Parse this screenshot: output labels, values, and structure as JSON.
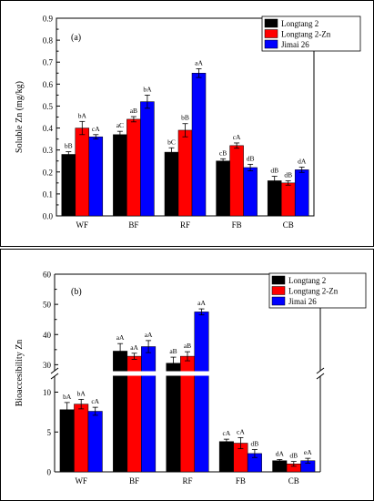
{
  "chart_data": [
    {
      "type": "bar",
      "panel_label": "(a)",
      "ylabel": "Soluble Zn (mg/kg)",
      "ylim": [
        0,
        0.9
      ],
      "yticks": [
        "0.0",
        "0.1",
        "0.2",
        "0.3",
        "0.4",
        "0.5",
        "0.6",
        "0.7",
        "0.8",
        "0.9"
      ],
      "categories": [
        "WF",
        "BF",
        "RF",
        "FB",
        "CB"
      ],
      "legend_position": "top-right",
      "series": [
        {
          "name": "Longtang 2",
          "color": "#000000",
          "values": [
            0.28,
            0.37,
            0.29,
            0.25,
            0.16
          ],
          "errors": [
            0.012,
            0.015,
            0.02,
            0.01,
            0.02
          ],
          "labels": [
            "bB",
            "aC",
            "bC",
            "cB",
            "dB"
          ]
        },
        {
          "name": "Longtang 2-Zn",
          "color": "#ff0000",
          "values": [
            0.4,
            0.44,
            0.39,
            0.32,
            0.15
          ],
          "errors": [
            0.03,
            0.012,
            0.03,
            0.012,
            0.01
          ],
          "labels": [
            "bA",
            "aB",
            "bB",
            "cA",
            "dB"
          ]
        },
        {
          "name": "Jimai 26",
          "color": "#0000ff",
          "values": [
            0.36,
            0.52,
            0.65,
            0.22,
            0.21
          ],
          "errors": [
            0.01,
            0.03,
            0.02,
            0.015,
            0.012
          ],
          "labels": [
            "cA",
            "bA",
            "aA",
            "dB",
            "dA"
          ]
        }
      ]
    },
    {
      "type": "bar",
      "panel_label": "(b)",
      "ylabel": "Bioaccesibility Zn",
      "axis_break": [
        12,
        28
      ],
      "ylim_lower": [
        0,
        12
      ],
      "ylim_upper": [
        28,
        60
      ],
      "yticks_lower": [
        "0",
        "5",
        "10"
      ],
      "yticks_upper": [
        "30",
        "40",
        "50",
        "60"
      ],
      "categories": [
        "WF",
        "BF",
        "RF",
        "FB",
        "CB"
      ],
      "legend_position": "top-right",
      "series": [
        {
          "name": "Longtang 2",
          "color": "#000000",
          "values": [
            7.8,
            34.5,
            30.5,
            3.8,
            1.4
          ],
          "errors": [
            0.9,
            2.5,
            2.0,
            0.3,
            0.15
          ],
          "labels": [
            "bA",
            "aA",
            "aB",
            "cA",
            "dA"
          ]
        },
        {
          "name": "Longtang 2-Zn",
          "color": "#ff0000",
          "values": [
            8.5,
            32.8,
            32.8,
            3.6,
            1.0
          ],
          "errors": [
            0.6,
            1.0,
            1.5,
            0.7,
            0.3
          ],
          "labels": [
            "bA",
            "aA",
            "aB",
            "cA",
            "dB"
          ]
        },
        {
          "name": "Jimai 26",
          "color": "#0000ff",
          "values": [
            7.6,
            36.0,
            47.5,
            2.3,
            1.4
          ],
          "errors": [
            0.5,
            2.0,
            1.0,
            0.5,
            0.3
          ],
          "labels": [
            "cA",
            "aA",
            "aA",
            "dB",
            "eA"
          ]
        }
      ]
    }
  ]
}
